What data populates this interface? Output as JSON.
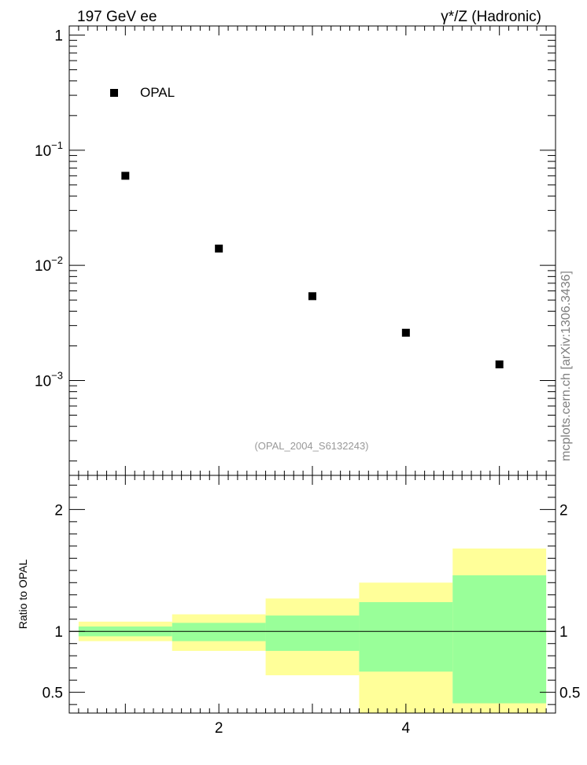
{
  "header": {
    "left": "197 GeV ee",
    "right": "γ*/Z (Hadronic)"
  },
  "side_label": "mcplots.cern.ch [arXiv:1306.3436]",
  "analysis_tag": "(OPAL_2004_S6132243)",
  "chart_data": [
    {
      "type": "scatter",
      "yscale": "log",
      "ylim": [
        0.00015,
        1.2
      ],
      "xlim": [
        0.4,
        5.6
      ],
      "y_tick_labels": [
        {
          "value": 1,
          "base": "1",
          "exp": ""
        },
        {
          "value": 0.1,
          "base": "10",
          "exp": "−1"
        },
        {
          "value": 0.01,
          "base": "10",
          "exp": "−2"
        },
        {
          "value": 0.001,
          "base": "10",
          "exp": "−3"
        }
      ],
      "legend": {
        "placement": "top-left",
        "entries": [
          "OPAL"
        ]
      },
      "series": [
        {
          "name": "OPAL",
          "color": "#000000",
          "x": [
            1,
            2,
            3,
            4,
            5
          ],
          "y": [
            0.06,
            0.014,
            0.0054,
            0.0026,
            0.00138
          ]
        }
      ]
    },
    {
      "type": "area",
      "ylabel": "Ratio to OPAL",
      "ylim": [
        0.33,
        2.28
      ],
      "xlim": [
        0.4,
        5.6
      ],
      "y_tick_labels": [
        "0.5",
        "1",
        "2"
      ],
      "y_ticks": [
        0.5,
        1,
        2
      ],
      "x_tick_labels": [
        "2",
        "4"
      ],
      "x_ticks": [
        2,
        4
      ],
      "reference_line": 1,
      "bands": {
        "bin_edges": [
          0.5,
          1.5,
          2.5,
          3.5,
          4.5,
          5.5
        ],
        "outer": {
          "color": "#ffff99",
          "low": [
            0.92,
            0.84,
            0.64,
            0.33,
            0.33
          ],
          "high": [
            1.08,
            1.14,
            1.27,
            1.4,
            1.68
          ]
        },
        "inner": {
          "color": "#99ff99",
          "low": [
            0.96,
            0.92,
            0.84,
            0.67,
            0.41
          ],
          "high": [
            1.04,
            1.07,
            1.13,
            1.24,
            1.46
          ]
        }
      }
    }
  ]
}
